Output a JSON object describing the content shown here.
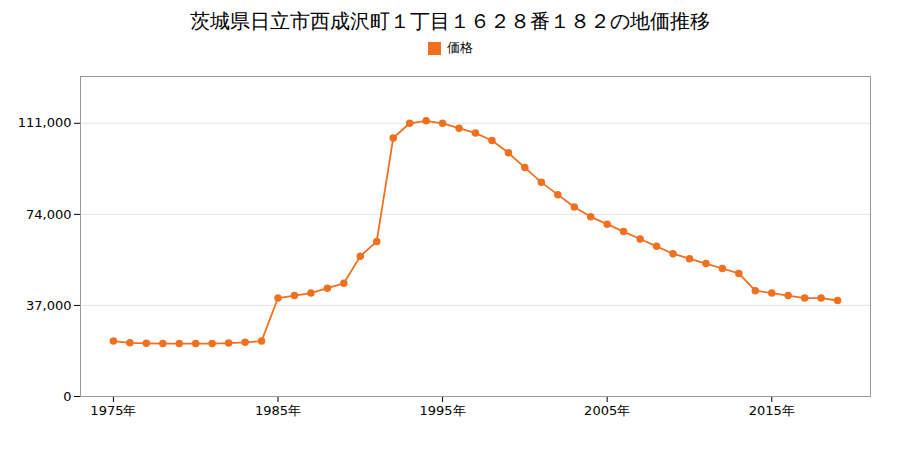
{
  "chart_data": {
    "type": "line",
    "title": "茨城県日立市西成沢町１丁目１６２８番１８２の地価推移",
    "legend": "top",
    "grid": true,
    "x": [
      1975,
      1976,
      1977,
      1978,
      1979,
      1980,
      1981,
      1982,
      1983,
      1984,
      1985,
      1986,
      1987,
      1988,
      1989,
      1990,
      1991,
      1992,
      1993,
      1994,
      1995,
      1996,
      1997,
      1998,
      1999,
      2000,
      2001,
      2002,
      2003,
      2004,
      2005,
      2006,
      2007,
      2008,
      2009,
      2010,
      2011,
      2012,
      2013,
      2014,
      2015,
      2016,
      2017,
      2018,
      2019
    ],
    "series": [
      {
        "name": "価格",
        "color": "#f07020",
        "marker": "circle",
        "line_style": "solid",
        "values": [
          22500,
          21800,
          21600,
          21500,
          21500,
          21500,
          21500,
          21700,
          22000,
          22500,
          40000,
          41000,
          42000,
          44000,
          46000,
          57000,
          63000,
          105000,
          111000,
          112000,
          111000,
          109000,
          107000,
          104000,
          99000,
          93000,
          87000,
          82000,
          77000,
          73000,
          70000,
          67000,
          64000,
          61000,
          58000,
          56000,
          54000,
          52000,
          50000,
          43000,
          42000,
          41000,
          40000,
          40000,
          39000
        ]
      }
    ],
    "xlim": [
      1973,
      2021
    ],
    "xticks": [
      {
        "value": 1975,
        "label": "1975年"
      },
      {
        "value": 1985,
        "label": "1985年"
      },
      {
        "value": 1995,
        "label": "1995年"
      },
      {
        "value": 2005,
        "label": "2005年"
      },
      {
        "value": 2015,
        "label": "2015年"
      }
    ],
    "ylim": [
      0,
      130000
    ],
    "yticks": [
      0,
      {
        "value": 37000,
        "label": "37,000"
      },
      {
        "value": 74000,
        "label": "74,000"
      },
      {
        "value": 111000,
        "label": "111,000"
      }
    ]
  }
}
